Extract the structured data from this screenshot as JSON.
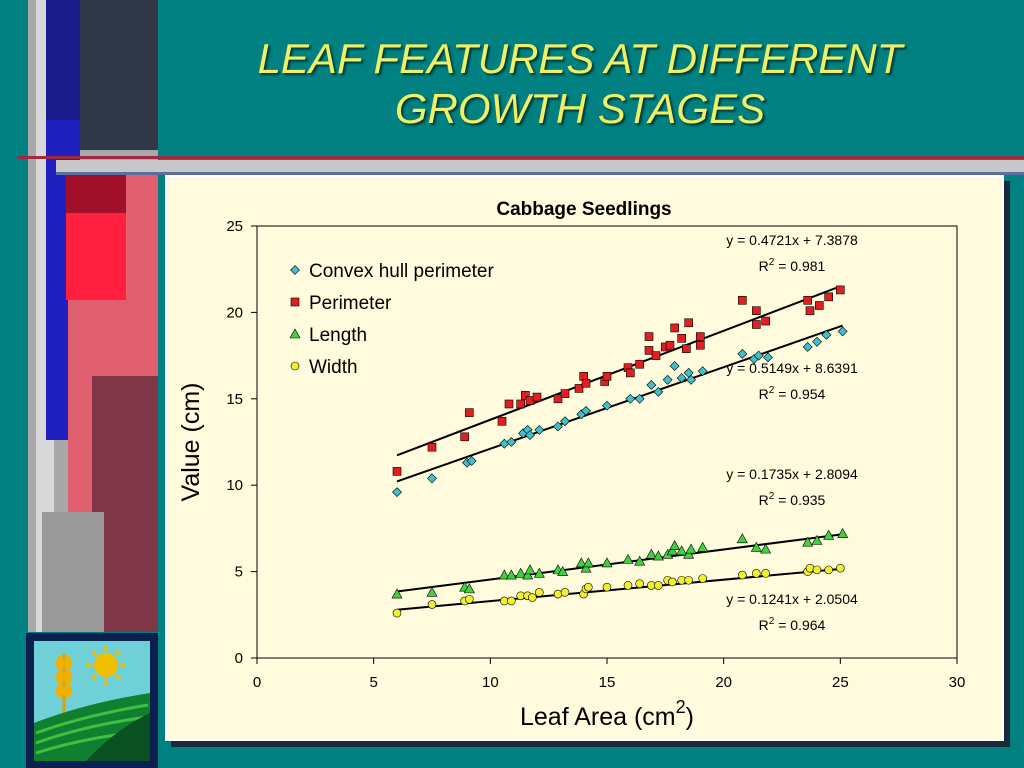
{
  "slide": {
    "title_line1": "LEAF FEATURES AT DIFFERENT",
    "title_line2": "GROWTH STAGES"
  },
  "colors": {
    "background": "#008080",
    "title": "#f0f066",
    "plot_bg": "#fffbdc",
    "convex": "#40c0c8",
    "perimeter": "#e02020",
    "length": "#40d040",
    "width": "#f0f030"
  },
  "chart_data": {
    "type": "scatter",
    "title": "Cabbage Seedlings",
    "xlabel": "Leaf Area (cm",
    "xlabel_sup": "2",
    "xlabel_end": ")",
    "ylabel": "Value (cm)",
    "xlim": [
      0,
      30
    ],
    "ylim": [
      0,
      25
    ],
    "xticks": [
      0,
      5,
      10,
      15,
      20,
      25,
      30
    ],
    "yticks": [
      0,
      5,
      10,
      15,
      20,
      25
    ],
    "legend_position": "top-left",
    "series": [
      {
        "name": "Convex hull perimeter",
        "marker": "diamond",
        "color": "#40c0c8",
        "trend": {
          "slope": 0.4721,
          "intercept": 7.3878,
          "equation": "y = 0.4721x + 7.3878",
          "r2_prefix": "R",
          "r2_sup": "2",
          "r2_value": " = 0.981"
        },
        "points": [
          [
            6.0,
            9.6
          ],
          [
            7.5,
            10.4
          ],
          [
            9.0,
            11.3
          ],
          [
            9.2,
            11.4
          ],
          [
            10.6,
            12.4
          ],
          [
            10.9,
            12.5
          ],
          [
            11.4,
            13.0
          ],
          [
            11.6,
            13.2
          ],
          [
            11.7,
            12.9
          ],
          [
            12.1,
            13.2
          ],
          [
            12.9,
            13.4
          ],
          [
            13.2,
            13.7
          ],
          [
            13.9,
            14.1
          ],
          [
            14.1,
            14.3
          ],
          [
            15.0,
            14.6
          ],
          [
            16.0,
            15.0
          ],
          [
            16.4,
            15.0
          ],
          [
            16.9,
            15.8
          ],
          [
            17.2,
            15.4
          ],
          [
            17.6,
            16.1
          ],
          [
            17.9,
            16.9
          ],
          [
            18.2,
            16.2
          ],
          [
            18.5,
            16.5
          ],
          [
            18.6,
            16.1
          ],
          [
            19.1,
            16.6
          ],
          [
            20.8,
            17.6
          ],
          [
            21.3,
            17.3
          ],
          [
            21.5,
            17.5
          ],
          [
            21.9,
            17.4
          ],
          [
            23.6,
            18.0
          ],
          [
            24.0,
            18.3
          ],
          [
            24.4,
            18.7
          ],
          [
            25.1,
            18.9
          ]
        ]
      },
      {
        "name": "Perimeter",
        "marker": "square",
        "color": "#e02020",
        "trend": {
          "slope": 0.5149,
          "intercept": 8.6391,
          "equation": "y = 0.5149x + 8.6391",
          "r2_prefix": "R",
          "r2_sup": "2",
          "r2_value": " = 0.954"
        },
        "points": [
          [
            6.0,
            10.8
          ],
          [
            7.5,
            12.2
          ],
          [
            8.9,
            12.8
          ],
          [
            9.1,
            14.2
          ],
          [
            10.5,
            13.7
          ],
          [
            10.8,
            14.7
          ],
          [
            11.3,
            14.7
          ],
          [
            11.5,
            15.2
          ],
          [
            11.7,
            14.9
          ],
          [
            12.0,
            15.1
          ],
          [
            12.9,
            15.0
          ],
          [
            13.2,
            15.3
          ],
          [
            13.8,
            15.6
          ],
          [
            14.0,
            16.3
          ],
          [
            14.1,
            15.9
          ],
          [
            14.9,
            16.0
          ],
          [
            15.0,
            16.3
          ],
          [
            15.9,
            16.8
          ],
          [
            16.0,
            16.5
          ],
          [
            16.4,
            17.0
          ],
          [
            16.8,
            17.8
          ],
          [
            16.8,
            18.6
          ],
          [
            17.1,
            17.5
          ],
          [
            17.5,
            18.0
          ],
          [
            17.7,
            18.1
          ],
          [
            17.9,
            19.1
          ],
          [
            18.2,
            18.5
          ],
          [
            18.4,
            17.9
          ],
          [
            18.5,
            19.4
          ],
          [
            19.0,
            18.1
          ],
          [
            19.0,
            18.6
          ],
          [
            20.8,
            20.7
          ],
          [
            21.4,
            20.1
          ],
          [
            21.4,
            19.3
          ],
          [
            21.8,
            19.5
          ],
          [
            23.6,
            20.7
          ],
          [
            23.7,
            20.1
          ],
          [
            24.1,
            20.4
          ],
          [
            24.5,
            20.9
          ],
          [
            25.0,
            21.3
          ]
        ]
      },
      {
        "name": "Length",
        "marker": "triangle",
        "color": "#40d040",
        "trend": {
          "slope": 0.1735,
          "intercept": 2.8094,
          "equation": "y = 0.1735x + 2.8094",
          "r2_prefix": "R",
          "r2_sup": "2",
          "r2_value": " = 0.935"
        },
        "points": [
          [
            6.0,
            3.7
          ],
          [
            7.5,
            3.8
          ],
          [
            8.9,
            4.1
          ],
          [
            9.1,
            4.0
          ],
          [
            10.6,
            4.8
          ],
          [
            10.9,
            4.8
          ],
          [
            11.3,
            4.9
          ],
          [
            11.6,
            4.8
          ],
          [
            11.7,
            5.1
          ],
          [
            12.1,
            4.9
          ],
          [
            12.9,
            5.1
          ],
          [
            13.1,
            5.0
          ],
          [
            13.9,
            5.5
          ],
          [
            14.1,
            5.2
          ],
          [
            14.2,
            5.5
          ],
          [
            15.0,
            5.5
          ],
          [
            15.9,
            5.7
          ],
          [
            16.4,
            5.6
          ],
          [
            16.9,
            6.0
          ],
          [
            17.2,
            5.9
          ],
          [
            17.6,
            6.0
          ],
          [
            17.8,
            6.2
          ],
          [
            17.9,
            6.5
          ],
          [
            18.2,
            6.2
          ],
          [
            18.5,
            6.0
          ],
          [
            18.6,
            6.3
          ],
          [
            19.1,
            6.4
          ],
          [
            20.8,
            6.9
          ],
          [
            21.4,
            6.4
          ],
          [
            21.8,
            6.3
          ],
          [
            23.6,
            6.7
          ],
          [
            24.0,
            6.8
          ],
          [
            24.5,
            7.1
          ],
          [
            25.1,
            7.2
          ]
        ]
      },
      {
        "name": "Width",
        "marker": "circle",
        "color": "#f0f030",
        "trend": {
          "slope": 0.1241,
          "intercept": 2.0504,
          "equation": "y = 0.1241x + 2.0504",
          "r2_prefix": "R",
          "r2_sup": "2",
          "r2_value": " = 0.964"
        },
        "points": [
          [
            6.0,
            2.6
          ],
          [
            7.5,
            3.1
          ],
          [
            8.9,
            3.3
          ],
          [
            9.1,
            3.4
          ],
          [
            10.6,
            3.3
          ],
          [
            10.9,
            3.3
          ],
          [
            11.3,
            3.6
          ],
          [
            11.6,
            3.6
          ],
          [
            11.8,
            3.5
          ],
          [
            12.1,
            3.8
          ],
          [
            12.9,
            3.7
          ],
          [
            13.2,
            3.8
          ],
          [
            14.0,
            3.7
          ],
          [
            14.1,
            4.0
          ],
          [
            14.2,
            4.1
          ],
          [
            15.0,
            4.1
          ],
          [
            15.9,
            4.2
          ],
          [
            16.4,
            4.3
          ],
          [
            16.9,
            4.2
          ],
          [
            17.2,
            4.2
          ],
          [
            17.6,
            4.5
          ],
          [
            17.8,
            4.4
          ],
          [
            18.2,
            4.5
          ],
          [
            18.5,
            4.5
          ],
          [
            19.1,
            4.6
          ],
          [
            20.8,
            4.8
          ],
          [
            21.4,
            4.9
          ],
          [
            21.8,
            4.9
          ],
          [
            23.6,
            5.0
          ],
          [
            23.7,
            5.2
          ],
          [
            24.0,
            5.1
          ],
          [
            24.5,
            5.1
          ],
          [
            25.0,
            5.2
          ]
        ]
      }
    ]
  }
}
